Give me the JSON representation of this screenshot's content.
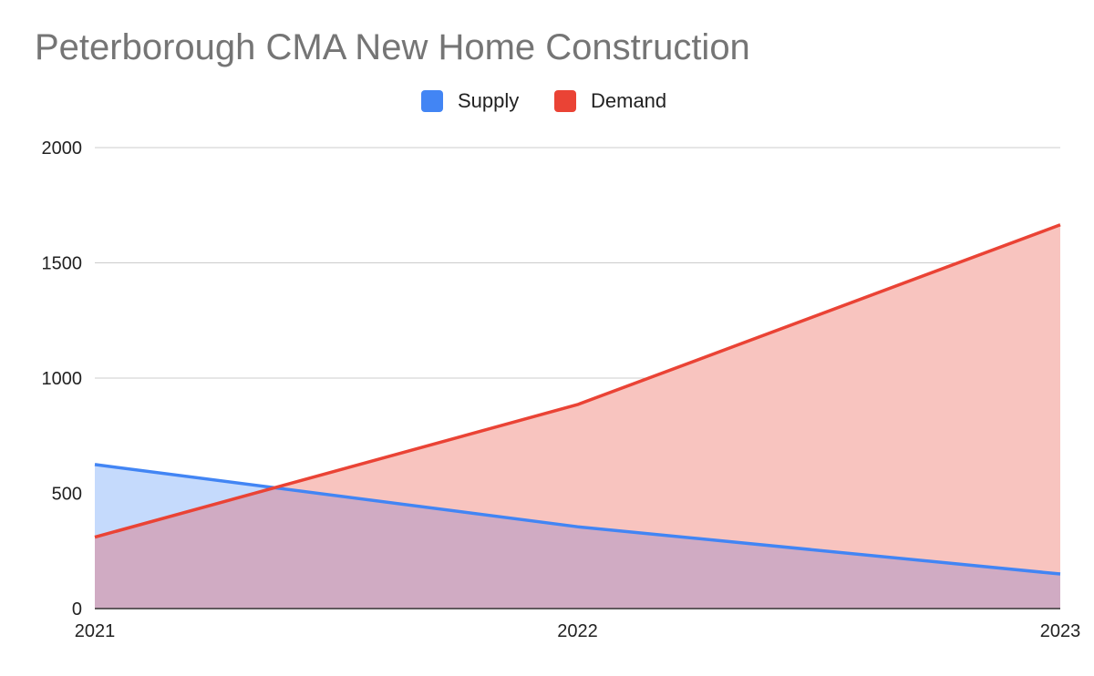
{
  "colors": {
    "supply": "#4285F4",
    "demand": "#EA4335",
    "supply_fill": "#c5dafc",
    "demand_fill": "#f8c4bf",
    "overlap_fill": "#d0abc3",
    "grid": "#cccccc",
    "axis": "#333333"
  },
  "chart_data": {
    "type": "area",
    "title": "Peterborough CMA New Home Construction",
    "xlabel": "",
    "ylabel": "",
    "categories": [
      "2021",
      "2022",
      "2023"
    ],
    "series": [
      {
        "name": "Supply",
        "values": [
          625,
          355,
          150
        ]
      },
      {
        "name": "Demand",
        "values": [
          310,
          885,
          1665
        ]
      }
    ],
    "ylim": [
      0,
      2000
    ],
    "yticks": [
      "0",
      "500",
      "1000",
      "1500",
      "2000"
    ],
    "grid": true,
    "legend_position": "top-center"
  }
}
